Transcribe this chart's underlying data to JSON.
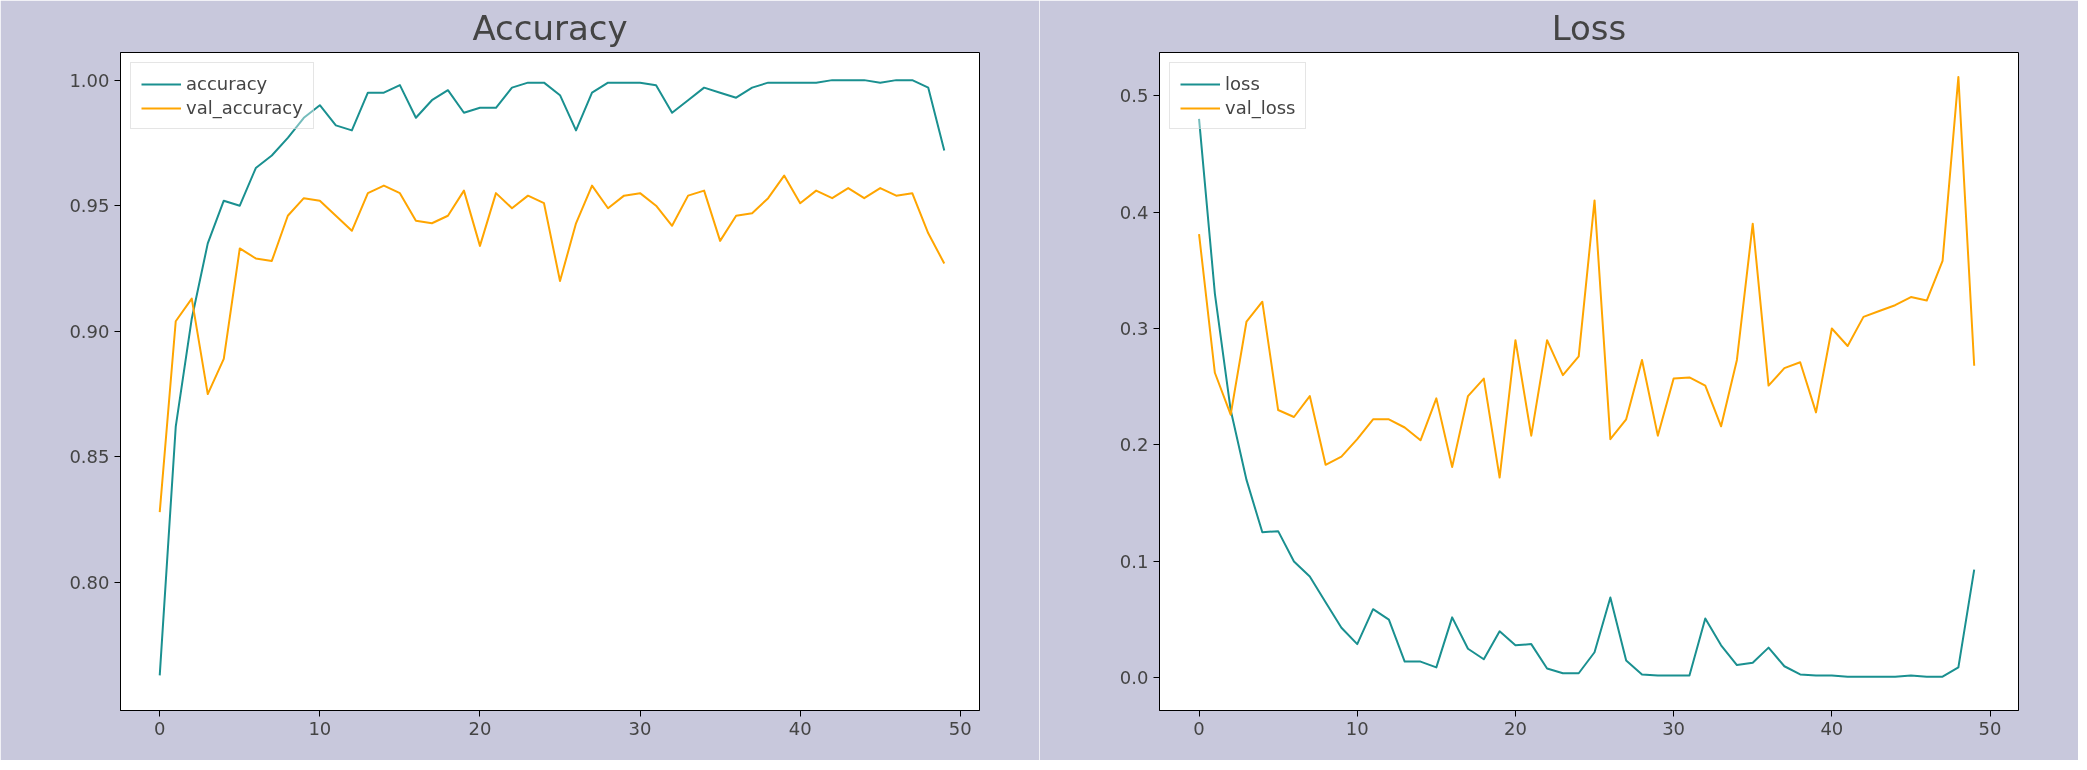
{
  "chart_data": [
    {
      "type": "line",
      "title": "Accuracy",
      "x": [
        0,
        1,
        2,
        3,
        4,
        5,
        6,
        7,
        8,
        9,
        10,
        11,
        12,
        13,
        14,
        15,
        16,
        17,
        18,
        19,
        20,
        21,
        22,
        23,
        24,
        25,
        26,
        27,
        28,
        29,
        30,
        31,
        32,
        33,
        34,
        35,
        36,
        37,
        38,
        39,
        40,
        41,
        42,
        43,
        44,
        45,
        46,
        47,
        48,
        49
      ],
      "series": [
        {
          "name": "accuracy",
          "color": "#1a9090",
          "values": [
            0.763,
            0.862,
            0.905,
            0.935,
            0.952,
            0.95,
            0.965,
            0.97,
            0.977,
            0.985,
            0.99,
            0.982,
            0.98,
            0.995,
            0.995,
            0.998,
            0.985,
            0.992,
            0.996,
            0.987,
            0.989,
            0.989,
            0.997,
            0.999,
            0.999,
            0.994,
            0.98,
            0.995,
            0.999,
            0.999,
            0.999,
            0.998,
            0.987,
            0.992,
            0.997,
            0.995,
            0.993,
            0.997,
            0.999,
            0.999,
            0.999,
            0.999,
            1.0,
            1.0,
            1.0,
            0.999,
            1.0,
            1.0,
            0.997,
            0.972
          ]
        },
        {
          "name": "val_accuracy",
          "color": "#ffa500",
          "values": [
            0.828,
            0.904,
            0.913,
            0.875,
            0.889,
            0.933,
            0.929,
            0.928,
            0.946,
            0.953,
            0.952,
            0.946,
            0.94,
            0.955,
            0.958,
            0.955,
            0.944,
            0.943,
            0.946,
            0.956,
            0.934,
            0.955,
            0.949,
            0.954,
            0.951,
            0.92,
            0.943,
            0.958,
            0.949,
            0.954,
            0.955,
            0.95,
            0.942,
            0.954,
            0.956,
            0.936,
            0.946,
            0.947,
            0.953,
            0.962,
            0.951,
            0.956,
            0.953,
            0.957,
            0.953,
            0.957,
            0.954,
            0.955,
            0.939,
            0.927
          ]
        }
      ],
      "xlim": [
        -2.45,
        51.2
      ],
      "ylim": [
        0.749,
        1.011
      ],
      "xticks": [
        0,
        10,
        20,
        30,
        40,
        50
      ],
      "yticks": [
        {
          "value": 0.8,
          "label": "0.80"
        },
        0.85,
        {
          "value": 0.9,
          "label": "0.90"
        },
        0.95,
        {
          "value": 1.0,
          "label": "1.00"
        }
      ],
      "legend": "top left",
      "grid": false
    },
    {
      "type": "line",
      "title": "Loss",
      "x": [
        0,
        1,
        2,
        3,
        4,
        5,
        6,
        7,
        8,
        9,
        10,
        11,
        12,
        13,
        14,
        15,
        16,
        17,
        18,
        19,
        20,
        21,
        22,
        23,
        24,
        25,
        26,
        27,
        28,
        29,
        30,
        31,
        32,
        33,
        34,
        35,
        36,
        37,
        38,
        39,
        40,
        41,
        42,
        43,
        44,
        45,
        46,
        47,
        48,
        49
      ],
      "series": [
        {
          "name": "loss",
          "color": "#1a9090",
          "values": [
            0.48,
            0.33,
            0.23,
            0.17,
            0.125,
            0.126,
            0.1,
            0.087,
            0.065,
            0.043,
            0.029,
            0.059,
            0.05,
            0.014,
            0.014,
            0.009,
            0.052,
            0.025,
            0.016,
            0.04,
            0.028,
            0.029,
            0.008,
            0.004,
            0.004,
            0.022,
            0.069,
            0.015,
            0.003,
            0.002,
            0.002,
            0.002,
            0.051,
            0.028,
            0.011,
            0.013,
            0.026,
            0.01,
            0.003,
            0.002,
            0.002,
            0.001,
            0.001,
            0.001,
            0.001,
            0.002,
            0.001,
            0.001,
            0.009,
            0.093
          ]
        },
        {
          "name": "val_loss",
          "color": "#ffa500",
          "values": [
            0.381,
            0.262,
            0.226,
            0.306,
            0.323,
            0.23,
            0.224,
            0.242,
            0.183,
            0.19,
            0.205,
            0.222,
            0.222,
            0.215,
            0.204,
            0.24,
            0.181,
            0.242,
            0.257,
            0.172,
            0.29,
            0.208,
            0.29,
            0.26,
            0.276,
            0.41,
            0.205,
            0.222,
            0.273,
            0.208,
            0.257,
            0.258,
            0.251,
            0.216,
            0.273,
            0.39,
            0.251,
            0.266,
            0.271,
            0.228,
            0.3,
            0.285,
            0.31,
            0.315,
            0.32,
            0.327,
            0.324,
            0.358,
            0.516,
            0.268
          ]
        }
      ],
      "xlim": [
        -2.5,
        51.8
      ],
      "ylim": [
        -0.028,
        0.537
      ],
      "xticks": [
        0,
        10,
        20,
        30,
        40,
        50
      ],
      "yticks": [
        {
          "value": 0.0,
          "label": "0.0"
        },
        0.1,
        0.2,
        0.3,
        0.4,
        0.5
      ],
      "legend": "top left",
      "grid": false
    }
  ]
}
